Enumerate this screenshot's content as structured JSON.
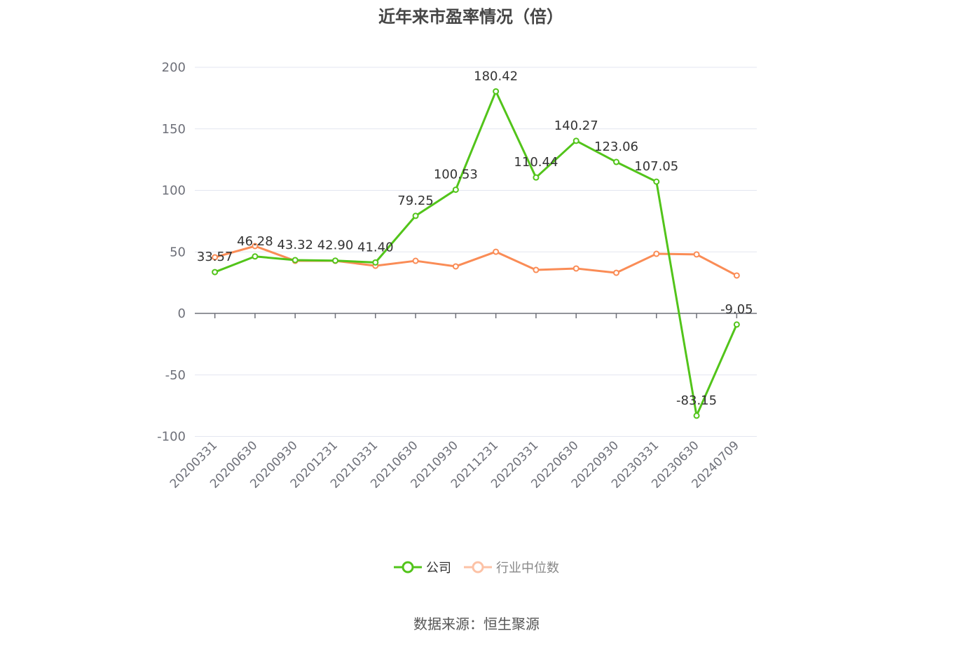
{
  "title": "近年来市盈率情况（倍）",
  "legend": {
    "company": "公司",
    "industry": "行业中位数"
  },
  "source": "数据来源：恒生聚源",
  "colors": {
    "company": "#52c41a",
    "industry": "#fa8c56",
    "grid": "#e3e6f0",
    "axis": "#6e7079",
    "label": "#333333",
    "tick_text": "#6e7079"
  },
  "chart_data": {
    "type": "line",
    "title": "近年来市盈率情况（倍）",
    "xlabel": "",
    "ylabel": "",
    "ylim": [
      -100,
      200
    ],
    "yticks": [
      200,
      150,
      100,
      50,
      0,
      -50,
      -100
    ],
    "grid": true,
    "legend_position": "bottom",
    "categories": [
      "20200331",
      "20200630",
      "20200930",
      "20201231",
      "20210331",
      "20210630",
      "20210930",
      "20211231",
      "20220331",
      "20220630",
      "20220930",
      "20230331",
      "20230630",
      "20240709"
    ],
    "series": [
      {
        "name": "公司",
        "values": [
          33.57,
          46.28,
          43.32,
          42.9,
          41.4,
          79.25,
          100.53,
          180.42,
          110.44,
          140.27,
          123.06,
          107.05,
          -83.15,
          -9.05
        ],
        "labels_shown": true
      },
      {
        "name": "行业中位数",
        "values": [
          45.6,
          54.7,
          42.7,
          42.7,
          38.7,
          42.7,
          38.2,
          50.1,
          35.3,
          36.5,
          33.0,
          48.4,
          47.9,
          30.8
        ],
        "labels_shown": false
      }
    ]
  }
}
